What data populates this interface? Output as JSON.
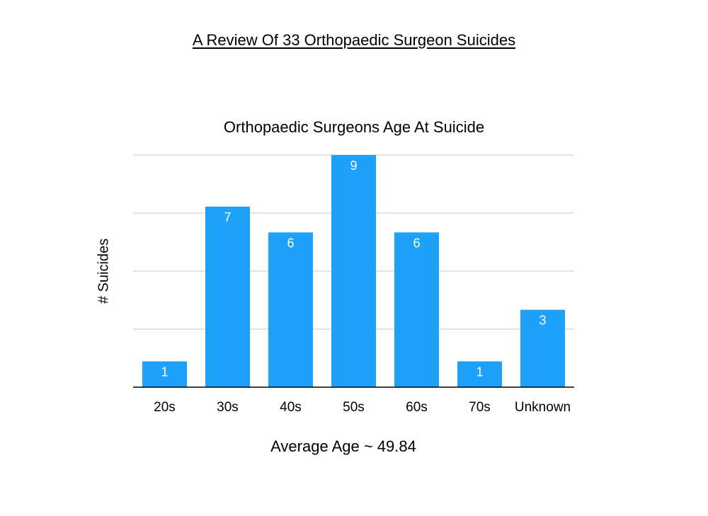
{
  "page": {
    "heading": "A Review Of 33 Orthopaedic Surgeon Suicides",
    "footnote": "Average Age ~ 49.84"
  },
  "chart_data": {
    "type": "bar",
    "title": "Orthopaedic Surgeons Age At Suicide",
    "xlabel": "",
    "ylabel": "# Suicides",
    "categories": [
      "20s",
      "30s",
      "40s",
      "50s",
      "60s",
      "70s",
      "Unknown"
    ],
    "values": [
      1,
      7,
      6,
      9,
      6,
      1,
      3
    ],
    "ylim": [
      0,
      9
    ],
    "grid": true,
    "gridlines": [
      2.25,
      4.5,
      6.75,
      9
    ],
    "data_labels": true,
    "bar_color": "#1ea1f9",
    "grid_color": "#c8c8c8",
    "axis_color": "#000000",
    "label_color": "#ffffff"
  }
}
